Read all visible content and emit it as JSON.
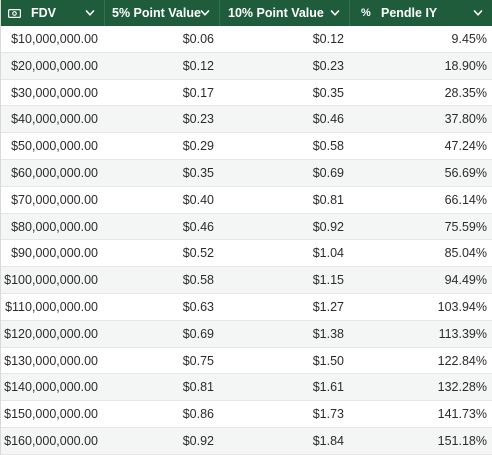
{
  "header": {
    "columns": [
      {
        "label": "FDV",
        "icon": "money-bill-icon"
      },
      {
        "label": "5% Point Value",
        "icon": ""
      },
      {
        "label": "10% Point Value",
        "icon": ""
      },
      {
        "label": "Pendle IY",
        "icon": "percent-icon"
      }
    ]
  },
  "colors": {
    "header_bg": "#1e5c3b",
    "header_text": "#ffffff",
    "row_alt_bg": "#f4f6f5"
  },
  "rows": [
    {
      "fdv": "$10,000,000.00",
      "point5": "$0.06",
      "point10": "$0.12",
      "iy": "9.45%"
    },
    {
      "fdv": "$20,000,000.00",
      "point5": "$0.12",
      "point10": "$0.23",
      "iy": "18.90%"
    },
    {
      "fdv": "$30,000,000.00",
      "point5": "$0.17",
      "point10": "$0.35",
      "iy": "28.35%"
    },
    {
      "fdv": "$40,000,000.00",
      "point5": "$0.23",
      "point10": "$0.46",
      "iy": "37.80%"
    },
    {
      "fdv": "$50,000,000.00",
      "point5": "$0.29",
      "point10": "$0.58",
      "iy": "47.24%"
    },
    {
      "fdv": "$60,000,000.00",
      "point5": "$0.35",
      "point10": "$0.69",
      "iy": "56.69%"
    },
    {
      "fdv": "$70,000,000.00",
      "point5": "$0.40",
      "point10": "$0.81",
      "iy": "66.14%"
    },
    {
      "fdv": "$80,000,000.00",
      "point5": "$0.46",
      "point10": "$0.92",
      "iy": "75.59%"
    },
    {
      "fdv": "$90,000,000.00",
      "point5": "$0.52",
      "point10": "$1.04",
      "iy": "85.04%"
    },
    {
      "fdv": "$100,000,000.00",
      "point5": "$0.58",
      "point10": "$1.15",
      "iy": "94.49%"
    },
    {
      "fdv": "$110,000,000.00",
      "point5": "$0.63",
      "point10": "$1.27",
      "iy": "103.94%"
    },
    {
      "fdv": "$120,000,000.00",
      "point5": "$0.69",
      "point10": "$1.38",
      "iy": "113.39%"
    },
    {
      "fdv": "$130,000,000.00",
      "point5": "$0.75",
      "point10": "$1.50",
      "iy": "122.84%"
    },
    {
      "fdv": "$140,000,000.00",
      "point5": "$0.81",
      "point10": "$1.61",
      "iy": "132.28%"
    },
    {
      "fdv": "$150,000,000.00",
      "point5": "$0.86",
      "point10": "$1.73",
      "iy": "141.73%"
    },
    {
      "fdv": "$160,000,000.00",
      "point5": "$0.92",
      "point10": "$1.84",
      "iy": "151.18%"
    }
  ]
}
